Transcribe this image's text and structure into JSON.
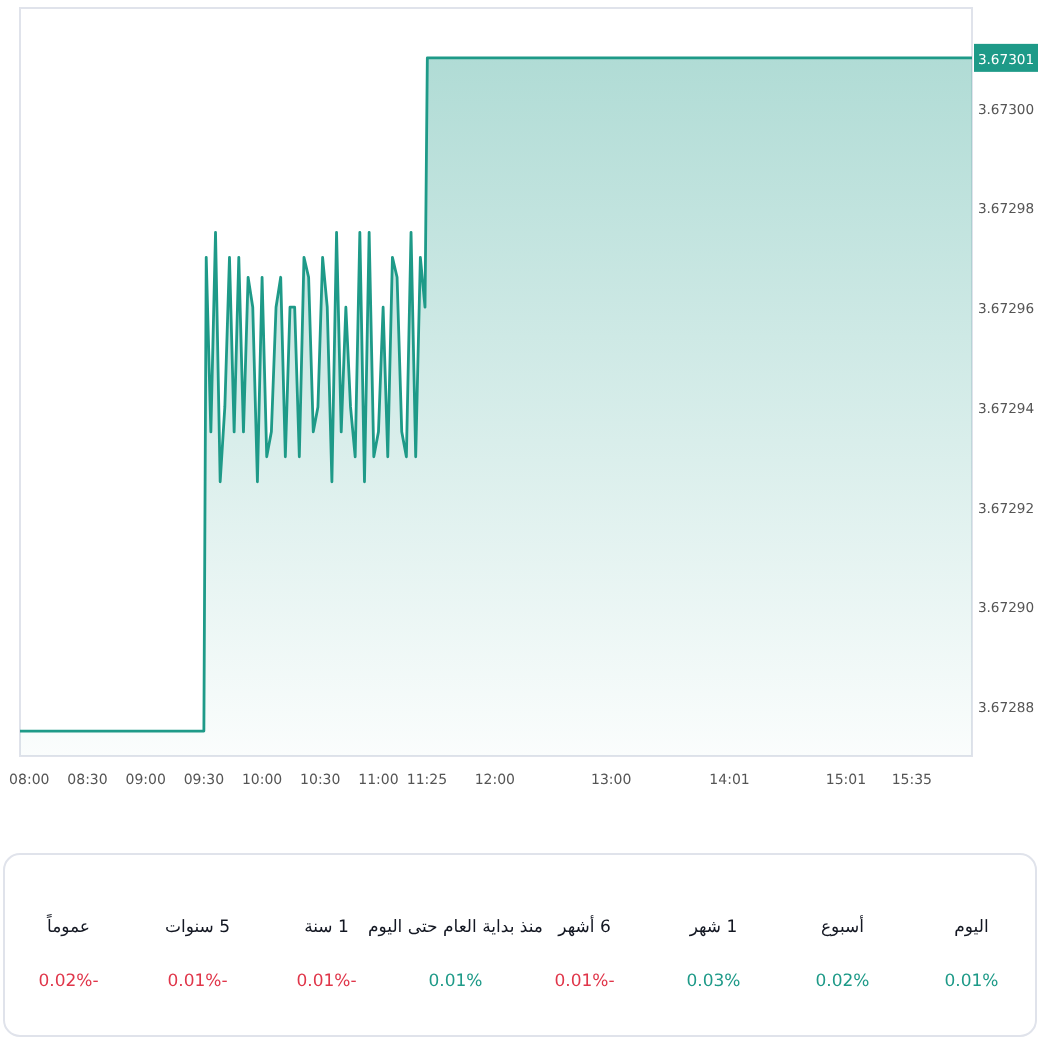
{
  "chart_data": [
    {
      "type": "area",
      "series": [
        {
          "color": "#1e9a88",
          "x": [
            7.92,
            9.5,
            9.52,
            9.56,
            9.6,
            9.64,
            9.68,
            9.72,
            9.76,
            9.8,
            9.84,
            9.88,
            9.92,
            9.96,
            10.0,
            10.04,
            10.08,
            10.12,
            10.16,
            10.2,
            10.24,
            10.28,
            10.32,
            10.36,
            10.4,
            10.44,
            10.48,
            10.52,
            10.56,
            10.6,
            10.64,
            10.68,
            10.72,
            10.76,
            10.8,
            10.84,
            10.88,
            10.92,
            10.96,
            11.0,
            11.04,
            11.08,
            11.12,
            11.16,
            11.2,
            11.24,
            11.28,
            11.32,
            11.36,
            11.4,
            11.42,
            16.1
          ],
          "values": [
            3.672875,
            3.672875,
            3.67297,
            3.672935,
            3.672975,
            3.672925,
            3.67294,
            3.67297,
            3.672935,
            3.67297,
            3.672935,
            3.672966,
            3.67296,
            3.672925,
            3.672966,
            3.67293,
            3.672935,
            3.67296,
            3.672966,
            3.67293,
            3.67296,
            3.67296,
            3.67293,
            3.67297,
            3.672966,
            3.672935,
            3.67294,
            3.67297,
            3.67296,
            3.672925,
            3.672975,
            3.672935,
            3.67296,
            3.67294,
            3.67293,
            3.672975,
            3.672925,
            3.672975,
            3.67293,
            3.672935,
            3.67296,
            3.67293,
            3.67297,
            3.672966,
            3.672935,
            3.67293,
            3.672975,
            3.67293,
            3.67297,
            3.67296,
            3.67301,
            3.67301
          ]
        }
      ],
      "xlim": [
        7.92,
        16.1
      ],
      "xticks": [
        {
          "value": 8,
          "label": "08:00"
        },
        {
          "value": 8.5,
          "label": "08:30"
        },
        {
          "value": 9,
          "label": "09:00"
        },
        {
          "value": 9.5,
          "label": "09:30"
        },
        {
          "value": 10,
          "label": "10:00"
        },
        {
          "value": 10.5,
          "label": "10:30"
        },
        {
          "value": 11,
          "label": "11:00"
        },
        {
          "value": 11.4167,
          "label": "11:25"
        },
        {
          "value": 12,
          "label": "12:00"
        },
        {
          "value": 13,
          "label": "13:00"
        },
        {
          "value": 14.0167,
          "label": "14:01"
        },
        {
          "value": 15.0167,
          "label": "15:01"
        },
        {
          "value": 15.5833,
          "label": "15:35"
        }
      ],
      "ylim": [
        3.67287,
        3.67302
      ],
      "yticks": [
        3.67288,
        {
          "value": 3.6729,
          "label": "3.67290"
        },
        3.67292,
        3.67294,
        3.67296,
        3.67298,
        {
          "value": 3.673,
          "label": "3.67300"
        }
      ],
      "annotations": [
        {
          "text": "3.67301",
          "y": 3.67301
        }
      ]
    },
    {
      "type": "other",
      "categories": [
        "اليوم",
        "أسبوع",
        "1 شهر",
        "6 أشهر",
        "منذ بداية العام حتى اليوم",
        "1 سنة",
        "5 سنوات",
        "عموماً"
      ],
      "value_labels": [
        "0.01%",
        "0.02%",
        "0.03%",
        "-0.01%",
        "0.01%",
        "-0.01%",
        "-0.01%",
        "-0.02%"
      ],
      "colors": [
        "#1e9a88",
        "#1e9a88",
        "#1e9a88",
        "#e0364a",
        "#1e9a88",
        "#e0364a",
        "#e0364a",
        "#e0364a"
      ]
    }
  ]
}
